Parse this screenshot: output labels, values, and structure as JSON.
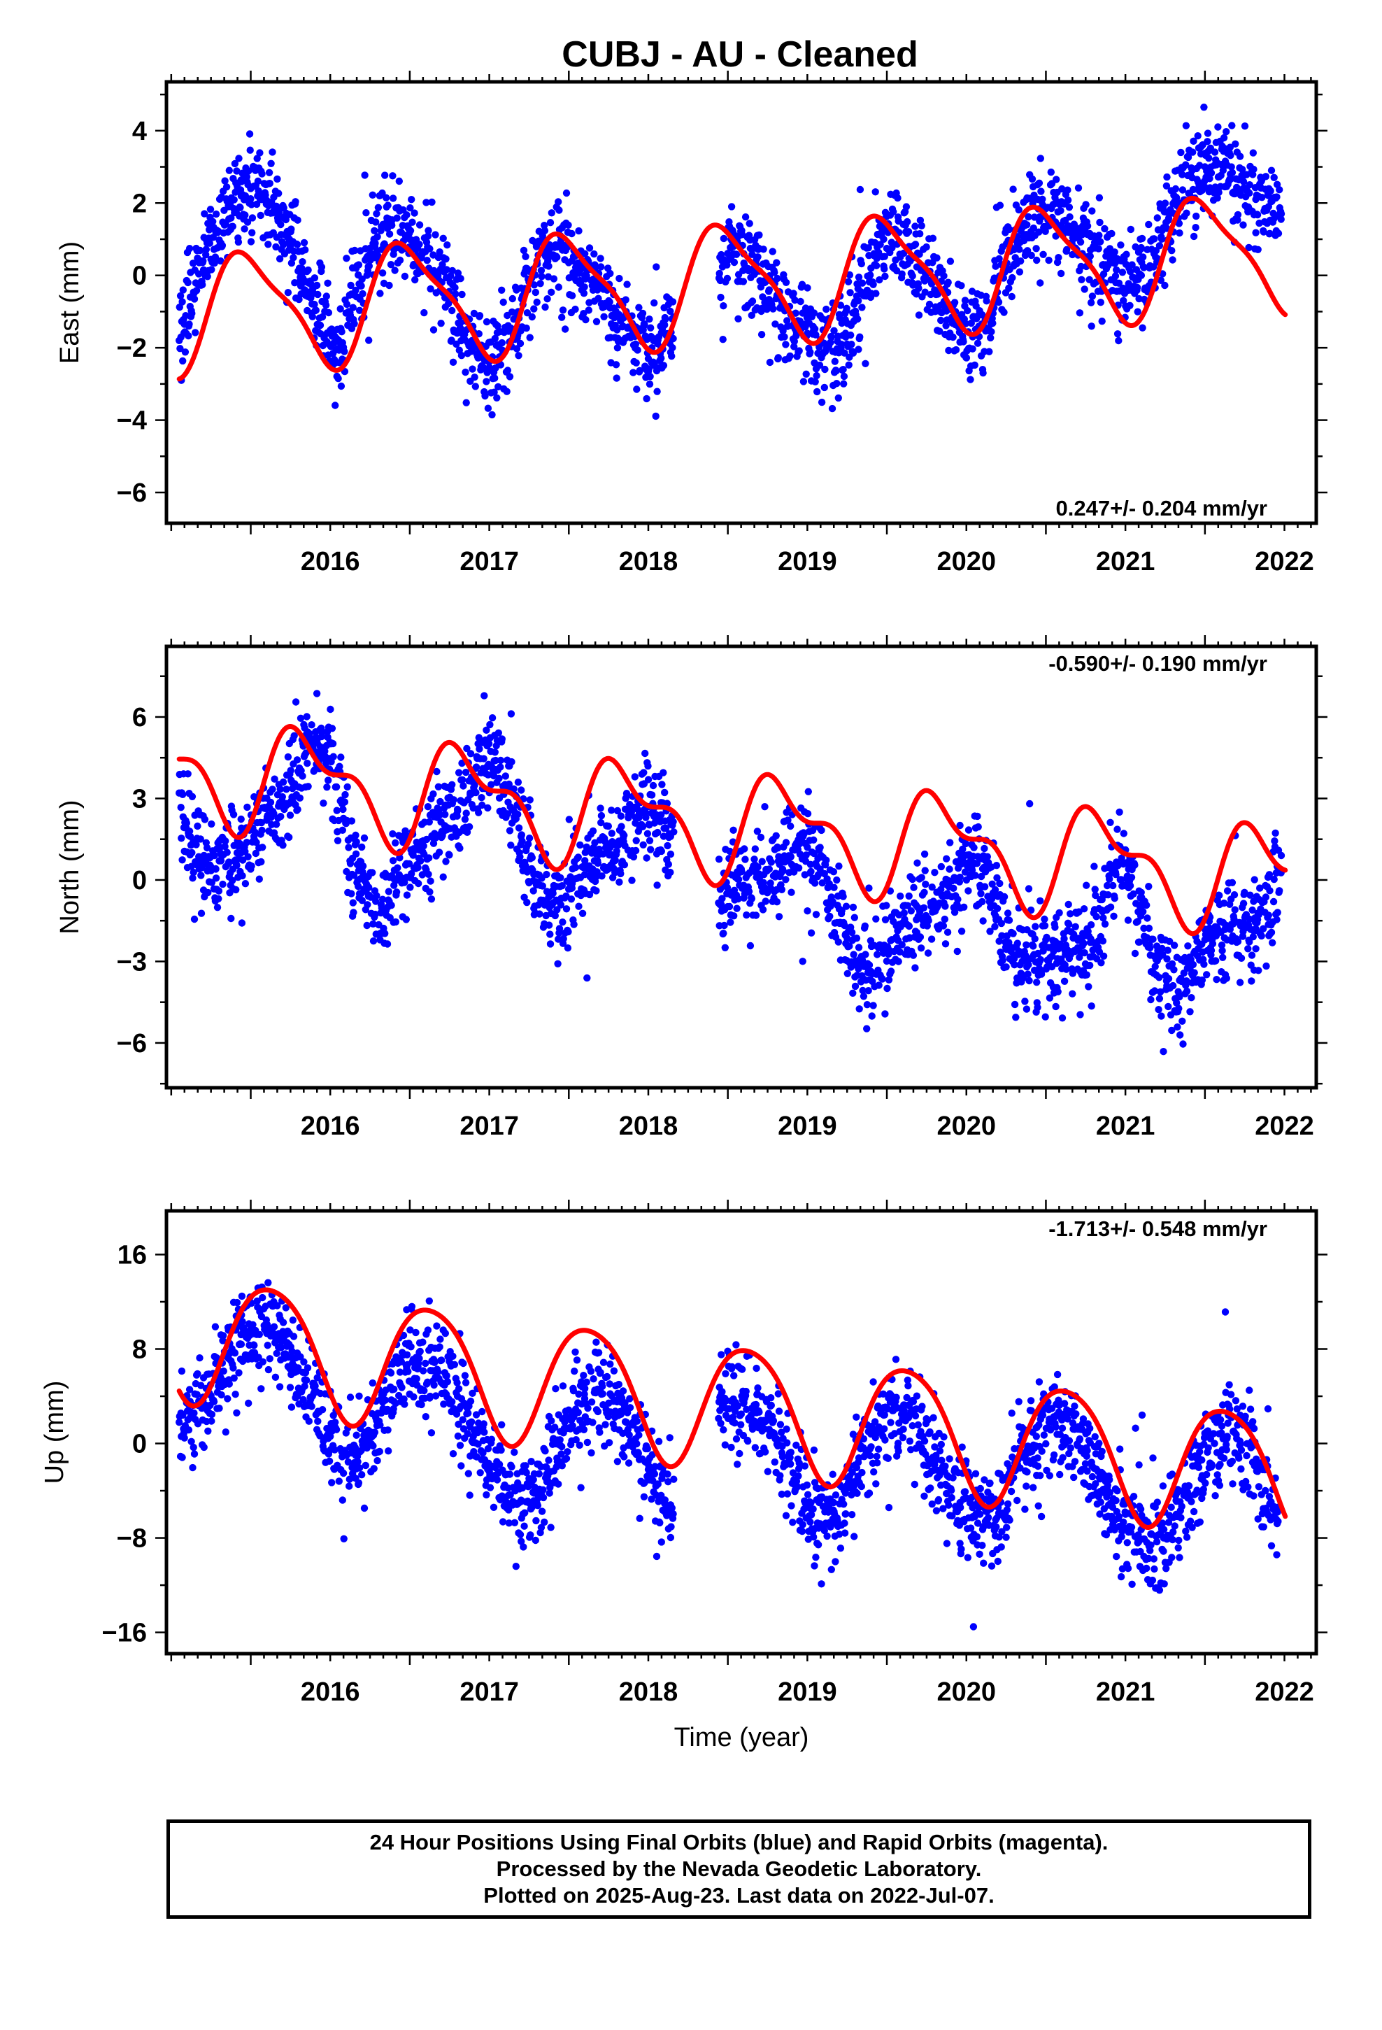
{
  "title": "CUBJ  - AU - Cleaned",
  "colors": {
    "points": "#0000ff",
    "fit": "#ff0000",
    "frame": "#000000"
  },
  "footer": {
    "line1": "24 Hour Positions Using Final Orbits (blue) and Rapid Orbits (magenta).",
    "line2": "Processed by the Nevada Geodetic Laboratory.",
    "line3": "Plotted on 2025-Aug-23. Last data on 2022-Jul-07."
  },
  "chart_data": [
    {
      "type": "scatter",
      "component": "east",
      "ylabel": "East (mm)",
      "xlabel": "",
      "rate_text": "0.247+/- 0.204 mm/yr",
      "xlim": [
        2015.47,
        2022.7
      ],
      "ylim": [
        -6.85,
        5.35
      ],
      "xticks": [
        2016,
        2017,
        2018,
        2019,
        2020,
        2021,
        2022
      ],
      "yticks": [
        -6,
        -4,
        -2,
        0,
        2,
        4
      ],
      "fit": {
        "offset": -0.21,
        "rate": 0.247,
        "a1": 1.55,
        "p1": 2015.99,
        "a2": 0.41,
        "p2": 2015.84
      },
      "series": [
        {
          "label": "Final orbits (blue)",
          "x": [
            2015.55,
            2015.62,
            2015.7,
            2015.78,
            2015.86,
            2015.94,
            2016.0,
            2016.08,
            2016.16,
            2016.24,
            2016.32,
            2016.4,
            2016.48,
            2016.56,
            2016.62,
            2016.7,
            2016.78,
            2016.86,
            2016.94,
            2017.0,
            2017.08,
            2017.16,
            2017.24,
            2017.32,
            2017.4,
            2017.48,
            2017.56,
            2017.64,
            2017.72,
            2017.8,
            2017.88,
            2017.96,
            2018.02,
            2018.1,
            2018.18,
            2018.26,
            2018.34,
            2018.42,
            2018.5,
            2018.58,
            2018.65,
            2018.95,
            2019.02,
            2019.1,
            2019.18,
            2019.26,
            2019.34,
            2019.42,
            2019.5,
            2019.58,
            2019.66,
            2019.74,
            2019.82,
            2019.9,
            2019.98,
            2020.06,
            2020.14,
            2020.22,
            2020.3,
            2020.38,
            2020.46,
            2020.54,
            2020.62,
            2020.72,
            2020.8,
            2020.88,
            2020.96,
            2021.04,
            2021.12,
            2021.2,
            2021.28,
            2021.36,
            2021.44,
            2021.52,
            2021.6,
            2021.68,
            2021.76,
            2021.84,
            2021.92,
            2022.0,
            2022.08,
            2022.16,
            2022.24,
            2022.32,
            2022.4,
            2022.48
          ],
          "y": [
            -1.8,
            -0.6,
            0.4,
            1.2,
            1.9,
            2.2,
            2.4,
            2.1,
            1.8,
            1.2,
            0.2,
            -0.8,
            -1.6,
            -2.0,
            -1.2,
            -0.1,
            0.8,
            1.3,
            1.2,
            1.0,
            0.6,
            0.1,
            -0.6,
            -1.3,
            -2.0,
            -2.6,
            -2.4,
            -1.8,
            -0.5,
            0.4,
            0.6,
            0.7,
            0.4,
            0.0,
            -0.4,
            -0.9,
            -1.4,
            -1.9,
            -2.3,
            -2.0,
            -1.2,
            0.5,
            1.0,
            0.6,
            0.1,
            -0.4,
            -0.9,
            -1.3,
            -1.6,
            -1.9,
            -2.1,
            -1.6,
            -0.7,
            0.2,
            1.0,
            1.2,
            0.8,
            0.2,
            -0.4,
            -0.9,
            -1.4,
            -1.7,
            -1.5,
            0.3,
            1.0,
            1.4,
            1.5,
            1.6,
            1.5,
            1.2,
            0.7,
            0.3,
            -0.2,
            -0.4,
            0.0,
            0.6,
            1.3,
            2.0,
            2.7,
            3.0,
            3.1,
            2.8,
            2.4,
            2.1,
            1.9,
            1.7
          ]
        }
      ]
    },
    {
      "type": "scatter",
      "component": "north",
      "ylabel": "North (mm)",
      "xlabel": "",
      "rate_text": "-0.590+/- 0.190 mm/yr",
      "xlim": [
        2015.47,
        2022.7
      ],
      "ylim": [
        -7.65,
        8.6
      ],
      "xticks": [
        2016,
        2017,
        2018,
        2019,
        2020,
        2021,
        2022
      ],
      "yticks": [
        -6,
        -3,
        0,
        3,
        6
      ],
      "fit": {
        "offset": 2.07,
        "rate": -0.59,
        "a1": 1.65,
        "p1": 2016.36,
        "a2": 0.85,
        "p2": 2016.2
      },
      "series": [
        {
          "label": "Final orbits (blue)",
          "x": [
            2015.55,
            2015.62,
            2015.7,
            2015.78,
            2015.86,
            2015.94,
            2016.02,
            2016.1,
            2016.18,
            2016.26,
            2016.34,
            2016.42,
            2016.5,
            2016.58,
            2016.64,
            2016.74,
            2016.82,
            2016.9,
            2016.98,
            2017.06,
            2017.14,
            2017.22,
            2017.3,
            2017.38,
            2017.46,
            2017.54,
            2017.62,
            2017.7,
            2017.78,
            2017.86,
            2017.94,
            2018.02,
            2018.1,
            2018.18,
            2018.26,
            2018.34,
            2018.42,
            2018.5,
            2018.58,
            2018.64,
            2018.95,
            2019.02,
            2019.1,
            2019.18,
            2019.26,
            2019.34,
            2019.42,
            2019.5,
            2019.58,
            2019.66,
            2019.74,
            2019.82,
            2019.9,
            2019.98,
            2020.06,
            2020.14,
            2020.22,
            2020.3,
            2020.38,
            2020.46,
            2020.54,
            2020.62,
            2020.72,
            2020.8,
            2020.88,
            2020.96,
            2021.04,
            2021.12,
            2021.2,
            2021.28,
            2021.36,
            2021.44,
            2021.52,
            2021.6,
            2021.68,
            2021.76,
            2021.84,
            2021.92,
            2022.0,
            2022.08,
            2022.16,
            2022.24,
            2022.32,
            2022.4,
            2022.48
          ],
          "y": [
            3.2,
            1.6,
            0.7,
            0.4,
            0.6,
            1.0,
            1.6,
            2.2,
            2.8,
            3.6,
            4.6,
            5.2,
            4.4,
            2.6,
            0.8,
            -0.6,
            -0.9,
            -0.2,
            0.6,
            1.2,
            1.6,
            2.0,
            2.6,
            3.2,
            4.1,
            4.4,
            3.3,
            1.6,
            0.2,
            -0.9,
            -0.8,
            -0.3,
            0.2,
            0.7,
            1.2,
            1.7,
            2.3,
            2.7,
            2.4,
            1.6,
            -0.9,
            -0.5,
            -0.2,
            0.1,
            0.4,
            0.8,
            1.1,
            1.2,
            0.4,
            -0.8,
            -2.0,
            -3.2,
            -3.4,
            -2.7,
            -2.1,
            -1.7,
            -1.4,
            -1.0,
            -0.5,
            0.1,
            0.6,
            0.3,
            -1.6,
            -2.9,
            -3.2,
            -3.0,
            -2.8,
            -2.6,
            -2.5,
            -2.3,
            -1.4,
            0.2,
            0.4,
            -1.0,
            -2.8,
            -3.9,
            -4.3,
            -3.4,
            -2.2,
            -1.9,
            -1.7,
            -1.9,
            -1.8,
            -1.3,
            0.9
          ]
        }
      ]
    },
    {
      "type": "scatter",
      "component": "up",
      "ylabel": "Up (mm)",
      "xlabel": "Time (year)",
      "rate_text": "-1.713+/- 0.548 mm/yr",
      "xlim": [
        2015.47,
        2022.7
      ],
      "ylim": [
        -17.8,
        19.7
      ],
      "xticks": [
        2016,
        2017,
        2018,
        2019,
        2020,
        2021,
        2022
      ],
      "yticks": [
        -16,
        -8,
        0,
        8,
        16
      ],
      "fit": {
        "offset": 3.4,
        "rate": -1.713,
        "a1": 5.3,
        "p1": 2016.13,
        "a2": 0.7,
        "p2": 2015.9
      },
      "series": [
        {
          "label": "Final orbits (blue)",
          "x": [
            2015.55,
            2015.62,
            2015.7,
            2015.78,
            2015.86,
            2015.94,
            2016.02,
            2016.1,
            2016.18,
            2016.26,
            2016.34,
            2016.42,
            2016.5,
            2016.58,
            2016.66,
            2016.74,
            2016.82,
            2016.9,
            2016.98,
            2017.06,
            2017.14,
            2017.22,
            2017.3,
            2017.38,
            2017.46,
            2017.54,
            2017.62,
            2017.7,
            2017.78,
            2017.86,
            2017.94,
            2018.02,
            2018.1,
            2018.18,
            2018.26,
            2018.34,
            2018.42,
            2018.5,
            2018.58,
            2018.64,
            2018.95,
            2019.02,
            2019.1,
            2019.18,
            2019.26,
            2019.34,
            2019.42,
            2019.5,
            2019.58,
            2019.66,
            2019.74,
            2019.82,
            2019.9,
            2019.98,
            2020.06,
            2020.14,
            2020.22,
            2020.3,
            2020.38,
            2020.46,
            2020.54,
            2020.62,
            2020.7,
            2020.78,
            2020.86,
            2020.94,
            2021.02,
            2021.1,
            2021.18,
            2021.26,
            2021.34,
            2021.42,
            2021.5,
            2021.58,
            2021.66,
            2021.74,
            2021.82,
            2021.9,
            2021.98,
            2022.06,
            2022.14,
            2022.22,
            2022.3,
            2022.38,
            2022.46
          ],
          "y": [
            1.8,
            2.2,
            3.6,
            5.4,
            7.2,
            8.4,
            9.3,
            9.6,
            9.2,
            7.8,
            5.4,
            2.6,
            0.6,
            -0.8,
            -1.0,
            0.4,
            2.6,
            4.6,
            6.4,
            7.2,
            7.0,
            6.0,
            4.0,
            1.4,
            -0.8,
            -2.8,
            -4.4,
            -4.8,
            -4.2,
            -2.6,
            0.0,
            2.4,
            3.8,
            4.6,
            4.2,
            2.8,
            0.4,
            -2.2,
            -4.4,
            -5.2,
            2.8,
            3.6,
            3.4,
            2.6,
            1.2,
            -0.8,
            -3.2,
            -5.4,
            -6.8,
            -6.4,
            -4.2,
            -1.6,
            0.8,
            2.4,
            3.0,
            2.4,
            0.6,
            -1.8,
            -3.6,
            -5.0,
            -6.2,
            -6.6,
            -5.4,
            -3.2,
            -1.2,
            0.6,
            1.8,
            2.0,
            1.2,
            -0.6,
            -3.0,
            -5.4,
            -7.2,
            -8.2,
            -8.6,
            -8.0,
            -6.0,
            -3.6,
            -1.4,
            0.0,
            0.6,
            0.2,
            -1.6,
            -4.0,
            -6.6
          ]
        }
      ]
    }
  ]
}
